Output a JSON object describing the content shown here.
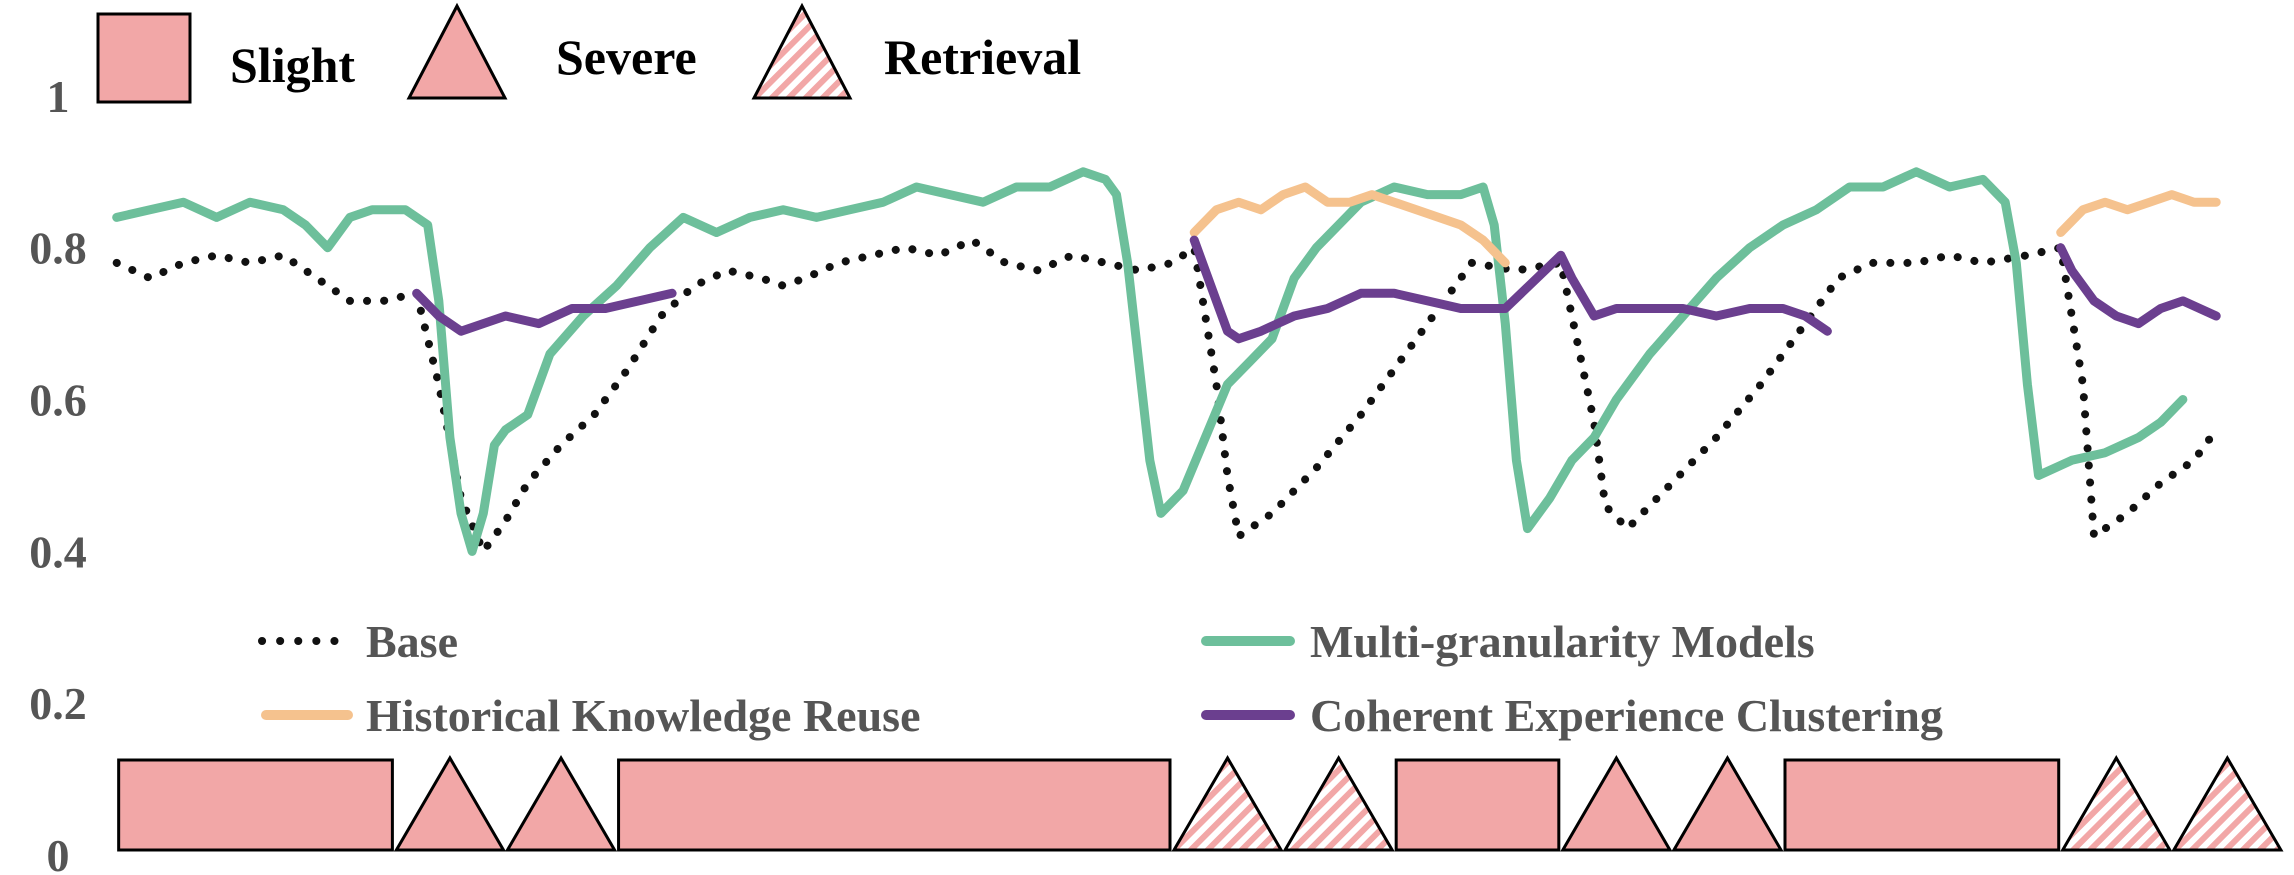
{
  "chart_data": {
    "type": "line",
    "title": "",
    "xlabel": "",
    "ylabel": "",
    "ylim": [
      0,
      1.1
    ],
    "yticks": [
      "0",
      "0.2",
      "0.4",
      "0.6",
      "0.8",
      "1"
    ],
    "grid": false,
    "legend_placement": "bottom",
    "shift_types": [
      {
        "key": "slight",
        "label": "Slight",
        "shape": "rectangle",
        "fill": "#f2a7a7",
        "hatched": false
      },
      {
        "key": "severe",
        "label": "Severe",
        "shape": "triangle",
        "fill": "#f2a7a7",
        "hatched": false
      },
      {
        "key": "retrieval",
        "label": "Retrieval",
        "shape": "triangle",
        "fill": "#f2a7a7",
        "hatched": true
      }
    ],
    "phases": [
      {
        "type": "slight",
        "start": 0,
        "end": 25
      },
      {
        "type": "severe",
        "start": 25,
        "end": 35
      },
      {
        "type": "severe",
        "start": 35,
        "end": 45
      },
      {
        "type": "slight",
        "start": 45,
        "end": 95
      },
      {
        "type": "retrieval",
        "start": 95,
        "end": 105
      },
      {
        "type": "retrieval",
        "start": 105,
        "end": 115
      },
      {
        "type": "slight",
        "start": 115,
        "end": 130
      },
      {
        "type": "severe",
        "start": 130,
        "end": 140
      },
      {
        "type": "severe",
        "start": 140,
        "end": 150
      },
      {
        "type": "slight",
        "start": 150,
        "end": 175
      },
      {
        "type": "retrieval",
        "start": 175,
        "end": 185
      },
      {
        "type": "retrieval",
        "start": 185,
        "end": 195
      }
    ],
    "xlim": [
      -1.5,
      196
    ],
    "series": [
      {
        "name": "Base",
        "color": "#111111",
        "style": "dotted",
        "points": [
          [
            0,
            0.78
          ],
          [
            3,
            0.76
          ],
          [
            6,
            0.78
          ],
          [
            9,
            0.79
          ],
          [
            12,
            0.78
          ],
          [
            15,
            0.79
          ],
          [
            18,
            0.76
          ],
          [
            21,
            0.73
          ],
          [
            24,
            0.73
          ],
          [
            27,
            0.74
          ],
          [
            29,
            0.62
          ],
          [
            31,
            0.47
          ],
          [
            33,
            0.4
          ],
          [
            35,
            0.44
          ],
          [
            37,
            0.49
          ],
          [
            40,
            0.54
          ],
          [
            43,
            0.58
          ],
          [
            46,
            0.64
          ],
          [
            49,
            0.71
          ],
          [
            52,
            0.75
          ],
          [
            55,
            0.77
          ],
          [
            58,
            0.76
          ],
          [
            60,
            0.75
          ],
          [
            62,
            0.76
          ],
          [
            65,
            0.78
          ],
          [
            68,
            0.79
          ],
          [
            71,
            0.8
          ],
          [
            74,
            0.79
          ],
          [
            77,
            0.81
          ],
          [
            80,
            0.78
          ],
          [
            83,
            0.77
          ],
          [
            86,
            0.79
          ],
          [
            89,
            0.78
          ],
          [
            92,
            0.77
          ],
          [
            95,
            0.78
          ],
          [
            97,
            0.8
          ],
          [
            99,
            0.62
          ],
          [
            100,
            0.5
          ],
          [
            101,
            0.42
          ],
          [
            104,
            0.45
          ],
          [
            108,
            0.51
          ],
          [
            112,
            0.58
          ],
          [
            116,
            0.66
          ],
          [
            119,
            0.72
          ],
          [
            122,
            0.78
          ],
          [
            126,
            0.77
          ],
          [
            130,
            0.78
          ],
          [
            133,
            0.57
          ],
          [
            134,
            0.46
          ],
          [
            136,
            0.43
          ],
          [
            140,
            0.49
          ],
          [
            144,
            0.55
          ],
          [
            148,
            0.62
          ],
          [
            152,
            0.7
          ],
          [
            155,
            0.76
          ],
          [
            158,
            0.78
          ],
          [
            162,
            0.78
          ],
          [
            165,
            0.79
          ],
          [
            168,
            0.78
          ],
          [
            172,
            0.79
          ],
          [
            175,
            0.8
          ],
          [
            177,
            0.62
          ],
          [
            178,
            0.42
          ],
          [
            181,
            0.45
          ],
          [
            184,
            0.49
          ],
          [
            187,
            0.52
          ],
          [
            189,
            0.56
          ]
        ]
      },
      {
        "name": "Multi-granularity Models",
        "color": "#6dbf9b",
        "style": "solid",
        "points": [
          [
            0,
            0.84
          ],
          [
            3,
            0.85
          ],
          [
            6,
            0.86
          ],
          [
            9,
            0.84
          ],
          [
            12,
            0.86
          ],
          [
            15,
            0.85
          ],
          [
            17,
            0.83
          ],
          [
            19,
            0.8
          ],
          [
            21,
            0.84
          ],
          [
            23,
            0.85
          ],
          [
            26,
            0.85
          ],
          [
            28,
            0.83
          ],
          [
            29,
            0.73
          ],
          [
            30,
            0.55
          ],
          [
            31,
            0.45
          ],
          [
            32,
            0.4
          ],
          [
            33,
            0.45
          ],
          [
            34,
            0.54
          ],
          [
            35,
            0.56
          ],
          [
            37,
            0.58
          ],
          [
            39,
            0.66
          ],
          [
            42,
            0.71
          ],
          [
            45,
            0.75
          ],
          [
            48,
            0.8
          ],
          [
            51,
            0.84
          ],
          [
            54,
            0.82
          ],
          [
            57,
            0.84
          ],
          [
            60,
            0.85
          ],
          [
            63,
            0.84
          ],
          [
            66,
            0.85
          ],
          [
            69,
            0.86
          ],
          [
            72,
            0.88
          ],
          [
            75,
            0.87
          ],
          [
            78,
            0.86
          ],
          [
            81,
            0.88
          ],
          [
            84,
            0.88
          ],
          [
            87,
            0.9
          ],
          [
            89,
            0.89
          ],
          [
            90,
            0.87
          ],
          [
            91,
            0.78
          ],
          [
            92,
            0.65
          ],
          [
            93,
            0.52
          ],
          [
            94,
            0.45
          ],
          [
            96,
            0.48
          ],
          [
            98,
            0.55
          ],
          [
            100,
            0.62
          ],
          [
            102,
            0.65
          ],
          [
            104,
            0.68
          ],
          [
            106,
            0.76
          ],
          [
            108,
            0.8
          ],
          [
            110,
            0.83
          ],
          [
            112,
            0.86
          ],
          [
            115,
            0.88
          ],
          [
            118,
            0.87
          ],
          [
            121,
            0.87
          ],
          [
            123,
            0.88
          ],
          [
            124,
            0.83
          ],
          [
            125,
            0.7
          ],
          [
            126,
            0.52
          ],
          [
            127,
            0.43
          ],
          [
            129,
            0.47
          ],
          [
            131,
            0.52
          ],
          [
            133,
            0.55
          ],
          [
            135,
            0.6
          ],
          [
            138,
            0.66
          ],
          [
            141,
            0.71
          ],
          [
            144,
            0.76
          ],
          [
            147,
            0.8
          ],
          [
            150,
            0.83
          ],
          [
            153,
            0.85
          ],
          [
            156,
            0.88
          ],
          [
            159,
            0.88
          ],
          [
            162,
            0.9
          ],
          [
            165,
            0.88
          ],
          [
            168,
            0.89
          ],
          [
            170,
            0.86
          ],
          [
            171,
            0.78
          ],
          [
            172,
            0.62
          ],
          [
            173,
            0.5
          ],
          [
            176,
            0.52
          ],
          [
            179,
            0.53
          ],
          [
            182,
            0.55
          ],
          [
            184,
            0.57
          ],
          [
            186,
            0.6
          ]
        ]
      },
      {
        "name": "Historical Knowledge Reuse",
        "color": "#f5c28e",
        "style": "solid",
        "points": [
          [
            97,
            0.82
          ],
          [
            99,
            0.85
          ],
          [
            101,
            0.86
          ],
          [
            103,
            0.85
          ],
          [
            105,
            0.87
          ],
          [
            107,
            0.88
          ],
          [
            109,
            0.86
          ],
          [
            111,
            0.86
          ],
          [
            113,
            0.87
          ],
          [
            115,
            0.86
          ],
          [
            117,
            0.85
          ],
          [
            119,
            0.84
          ],
          [
            121,
            0.83
          ],
          [
            123,
            0.81
          ],
          [
            125,
            0.78
          ],
          [
            175,
            0.82
          ],
          [
            177,
            0.85
          ],
          [
            179,
            0.86
          ],
          [
            181,
            0.85
          ],
          [
            183,
            0.86
          ],
          [
            185,
            0.87
          ],
          [
            187,
            0.86
          ],
          [
            189,
            0.86
          ]
        ]
      },
      {
        "name": "Coherent Experience Clustering",
        "color": "#6b3f8f",
        "style": "solid",
        "points": [
          [
            27,
            0.74
          ],
          [
            29,
            0.71
          ],
          [
            31,
            0.69
          ],
          [
            33,
            0.7
          ],
          [
            35,
            0.71
          ],
          [
            38,
            0.7
          ],
          [
            41,
            0.72
          ],
          [
            44,
            0.72
          ],
          [
            47,
            0.73
          ],
          [
            50,
            0.74
          ],
          [
            97,
            0.81
          ],
          [
            99,
            0.73
          ],
          [
            100,
            0.69
          ],
          [
            101,
            0.68
          ],
          [
            103,
            0.69
          ],
          [
            106,
            0.71
          ],
          [
            109,
            0.72
          ],
          [
            112,
            0.74
          ],
          [
            115,
            0.74
          ],
          [
            118,
            0.73
          ],
          [
            121,
            0.72
          ],
          [
            123,
            0.72
          ],
          [
            125,
            0.72
          ],
          [
            130,
            0.79
          ],
          [
            131,
            0.76
          ],
          [
            133,
            0.71
          ],
          [
            135,
            0.72
          ],
          [
            138,
            0.72
          ],
          [
            141,
            0.72
          ],
          [
            144,
            0.71
          ],
          [
            147,
            0.72
          ],
          [
            150,
            0.72
          ],
          [
            152,
            0.71
          ],
          [
            154,
            0.69
          ],
          [
            175,
            0.8
          ],
          [
            176,
            0.77
          ],
          [
            178,
            0.73
          ],
          [
            180,
            0.71
          ],
          [
            182,
            0.7
          ],
          [
            184,
            0.72
          ],
          [
            186,
            0.73
          ],
          [
            189,
            0.71
          ]
        ]
      }
    ]
  }
}
